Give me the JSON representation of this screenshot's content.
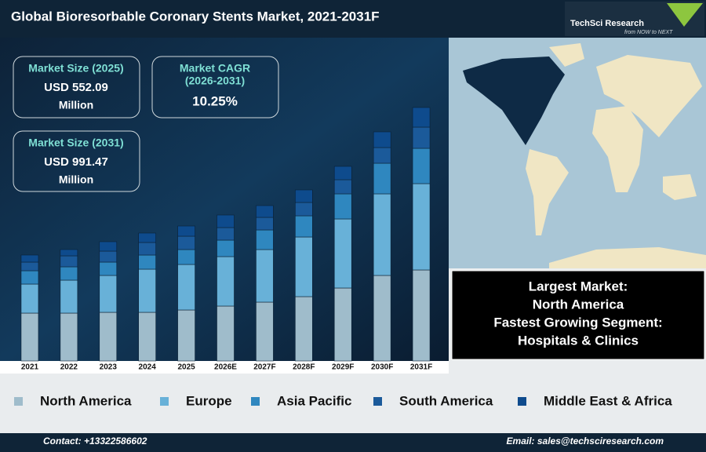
{
  "header": {
    "title": "Global Bioresorbable Coronary Stents Market, 2021-2031F",
    "logo": "TechSci Research",
    "tagline": "from NOW to NEXT"
  },
  "kpis": [
    {
      "label": "Market Size (2025)",
      "value": "USD 552.09",
      "unit": "Million"
    },
    {
      "label": "Market CAGR",
      "period": "(2026-2031)",
      "value": "10.25%"
    },
    {
      "label": "Market Size (2031)",
      "value": "USD 991.47",
      "unit": "Million"
    }
  ],
  "highlights": [
    "Largest Market:",
    "North America",
    "Fastest Growing Segment:",
    "Hospitals & Clinics"
  ],
  "footer": {
    "contact": "Contact: +13322586602",
    "email": "Email: sales@techsciresearch.com"
  },
  "chart_data": {
    "type": "stacked-bar",
    "categories": [
      "2021",
      "2022",
      "2023",
      "2024",
      "2025",
      "2026E",
      "2027F",
      "2028F",
      "2029F",
      "2030F",
      "2031F"
    ],
    "ylim": [
      0,
      330
    ],
    "series": [
      {
        "name": "North America",
        "color": "#9fbccb",
        "values": [
          61,
          61,
          62,
          62,
          65,
          70,
          75,
          82,
          93,
          109,
          116
        ]
      },
      {
        "name": "Europe",
        "color": "#68b1d8",
        "values": [
          37,
          42,
          47,
          55,
          58,
          63,
          67,
          76,
          88,
          104,
          110
        ]
      },
      {
        "name": "Asia Pacific",
        "color": "#2f87bf",
        "values": [
          17,
          17,
          17,
          18,
          19,
          21,
          25,
          27,
          32,
          39,
          45
        ]
      },
      {
        "name": "South America",
        "color": "#1b5a9a",
        "values": [
          11,
          14,
          14,
          16,
          17,
          16,
          16,
          17,
          18,
          20,
          27
        ]
      },
      {
        "name": "Middle East & Africa",
        "color": "#0e4b8d",
        "values": [
          9,
          8,
          12,
          12,
          13,
          16,
          15,
          16,
          17,
          20,
          25
        ]
      }
    ]
  }
}
